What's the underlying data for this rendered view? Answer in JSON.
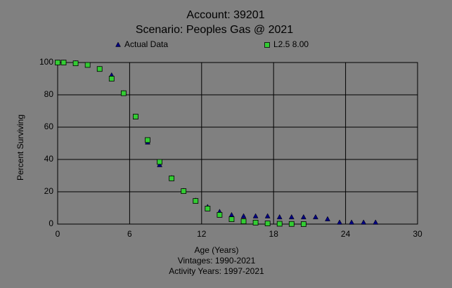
{
  "chart_data": {
    "type": "scatter",
    "title": "Account: 39201",
    "subtitle": "Scenario: Peoples Gas @ 2021",
    "x_label": "Age (Years)",
    "y_label": "Percent Surviving",
    "notes": [
      "Vintages: 1990-2021",
      "Activity Years: 1997-2021"
    ],
    "xlim": [
      0,
      30
    ],
    "xticks": [
      0,
      6,
      12,
      18,
      24,
      30
    ],
    "ylim": [
      0,
      100
    ],
    "yticks": [
      0,
      20,
      40,
      60,
      80,
      100
    ],
    "grid": true,
    "series": [
      {
        "name": "Actual Data",
        "color": "#000080",
        "marker": "triangle",
        "x": [
          0,
          0.5,
          1.5,
          2.5,
          3.5,
          4.5,
          5.5,
          6.5,
          7.5,
          8.5,
          9.5,
          10.5,
          11.5,
          12.5,
          13.5,
          14.5,
          15.5,
          16.5,
          17.5,
          18.5,
          19.5,
          20.5,
          21.5,
          22.5,
          23.5,
          24.5,
          25.5,
          26.5
        ],
        "values": [
          100,
          100,
          99.5,
          98.5,
          96,
          92,
          81,
          66,
          50.5,
          36.5,
          28.5,
          20.5,
          14.5,
          10.5,
          7.5,
          5.5,
          4.8,
          4.8,
          4.8,
          4.2,
          4.2,
          4.2,
          4.2,
          3,
          0.9,
          0.9,
          0.9,
          0.9
        ]
      },
      {
        "name": "L2.5 8.00",
        "color": "#33cc33",
        "marker": "square",
        "x": [
          0,
          0.5,
          1.5,
          2.5,
          3.5,
          4.5,
          5.5,
          6.5,
          7.5,
          8.5,
          9.5,
          10.5,
          11.5,
          12.5,
          13.5,
          14.5,
          15.5,
          16.5,
          17.5,
          18.5,
          19.5,
          20.5
        ],
        "values": [
          100,
          100,
          99.5,
          98.5,
          96,
          90,
          81,
          66.5,
          52,
          38.5,
          28.3,
          20.4,
          14.3,
          9.6,
          5.7,
          3,
          1.7,
          0.9,
          0.4,
          0.2,
          0.1,
          0
        ]
      }
    ]
  }
}
